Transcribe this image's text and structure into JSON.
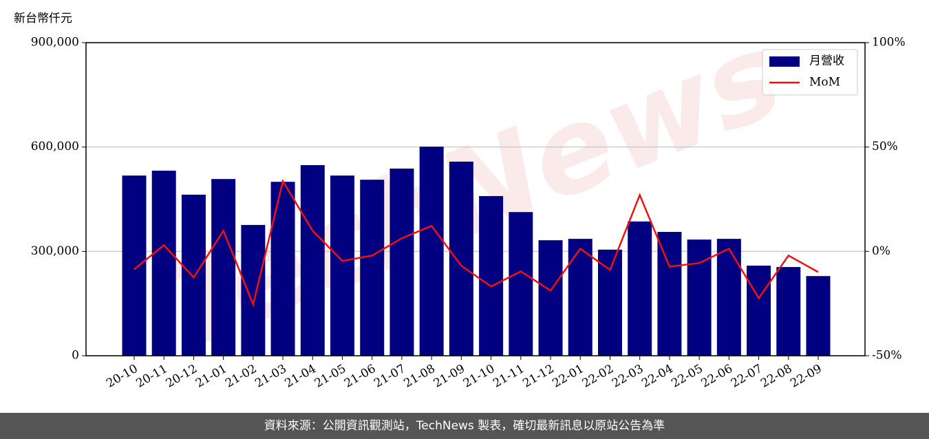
{
  "chart_data": {
    "type": "bar_line",
    "ylabel": "新台幣仟元",
    "watermark": "TechNews",
    "footer": "資料來源：公開資訊觀測站，TechNews 製表，確切最新訊息以原站公告為準",
    "categories": [
      "20-10",
      "20-11",
      "20-12",
      "21-01",
      "21-02",
      "21-03",
      "21-04",
      "21-05",
      "21-06",
      "21-07",
      "21-08",
      "21-09",
      "21-10",
      "21-11",
      "21-12",
      "22-01",
      "22-02",
      "22-03",
      "22-04",
      "22-05",
      "22-06",
      "22-07",
      "22-08",
      "22-09"
    ],
    "series": [
      {
        "name": "月營收",
        "type": "bar",
        "color": "#000080",
        "values": [
          518000,
          532000,
          463000,
          508000,
          376000,
          500000,
          548000,
          518000,
          506000,
          538000,
          601000,
          558000,
          459000,
          413000,
          332000,
          336000,
          305000,
          386000,
          356000,
          334000,
          336000,
          259000,
          255000,
          229000
        ]
      },
      {
        "name": "MoM",
        "type": "line",
        "axis": "y2",
        "color": "#ee1111",
        "values": [
          -8.6,
          3,
          -12.5,
          9.9,
          -25.4,
          33.6,
          9.9,
          -4.6,
          -2,
          6.3,
          12.2,
          -6.9,
          -16.8,
          -9.6,
          -18.8,
          1.3,
          -8.9,
          27,
          -7.3,
          -5.6,
          1.3,
          -22.4,
          -2,
          -9.9
        ]
      }
    ],
    "ylim": [
      0,
      900000
    ],
    "yticks": [
      0,
      {
        "value": 300000,
        "label": "300,000"
      },
      {
        "value": 600000,
        "label": "600,000"
      },
      {
        "value": 900000,
        "label": "900,000"
      }
    ],
    "y2lim": [
      -50,
      100
    ],
    "y2ticks": [
      {
        "value": -50,
        "label": "-50%"
      },
      {
        "value": 0,
        "label": "0%"
      },
      {
        "value": 50,
        "label": "50%"
      },
      {
        "value": 100,
        "label": "100%"
      }
    ],
    "grid": true,
    "legend": "upper right"
  }
}
